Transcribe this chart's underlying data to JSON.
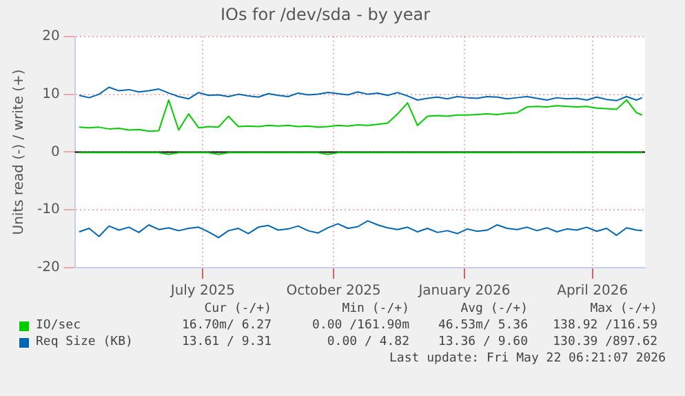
{
  "chart_data": {
    "type": "line",
    "title": "IOs for /dev/sda - by year",
    "ylabel": "Units read (-) / write (+)",
    "x": [
      "2025-04-05",
      "2025-04-12",
      "2025-04-19",
      "2025-04-26",
      "2025-05-03",
      "2025-05-10",
      "2025-05-17",
      "2025-05-24",
      "2025-05-31",
      "2025-06-07",
      "2025-06-14",
      "2025-06-21",
      "2025-06-28",
      "2025-07-05",
      "2025-07-12",
      "2025-07-19",
      "2025-07-26",
      "2025-08-02",
      "2025-08-09",
      "2025-08-16",
      "2025-08-23",
      "2025-08-30",
      "2025-09-06",
      "2025-09-13",
      "2025-09-20",
      "2025-09-27",
      "2025-10-04",
      "2025-10-11",
      "2025-10-18",
      "2025-10-25",
      "2025-11-01",
      "2025-11-08",
      "2025-11-15",
      "2025-11-22",
      "2025-11-29",
      "2025-12-06",
      "2025-12-13",
      "2025-12-20",
      "2025-12-27",
      "2026-01-03",
      "2026-01-10",
      "2026-01-17",
      "2026-01-24",
      "2026-01-31",
      "2026-02-07",
      "2026-02-14",
      "2026-02-21",
      "2026-02-28",
      "2026-03-07",
      "2026-03-14",
      "2026-03-21",
      "2026-03-28",
      "2026-04-04",
      "2026-04-11",
      "2026-04-18",
      "2026-04-25",
      "2026-05-02",
      "2026-05-06"
    ],
    "series": [
      {
        "name": "IO/sec",
        "color": "#00cc00",
        "values": [
          4.3,
          4.2,
          4.3,
          4.0,
          4.1,
          3.8,
          3.9,
          3.6,
          3.7,
          9.0,
          3.8,
          6.6,
          4.2,
          4.4,
          4.3,
          6.2,
          4.4,
          4.5,
          4.4,
          4.6,
          4.5,
          4.6,
          4.4,
          4.5,
          4.3,
          4.4,
          4.6,
          4.5,
          4.7,
          4.6,
          4.8,
          5.0,
          6.6,
          8.5,
          4.6,
          6.2,
          6.3,
          6.2,
          6.4,
          6.4,
          6.5,
          6.6,
          6.5,
          6.7,
          6.8,
          7.8,
          7.9,
          7.8,
          8.0,
          7.9,
          7.8,
          7.9,
          7.6,
          7.5,
          7.4,
          9.0,
          6.8,
          6.4
        ]
      },
      {
        "color": "#00cc00",
        "values": [
          -0.1,
          -0.1,
          -0.1,
          -0.1,
          -0.1,
          -0.1,
          -0.1,
          -0.1,
          -0.1,
          -0.4,
          -0.1,
          -0.1,
          -0.1,
          -0.1,
          -0.4,
          -0.1,
          -0.1,
          -0.1,
          -0.1,
          -0.1,
          -0.1,
          -0.1,
          -0.1,
          -0.1,
          -0.1,
          -0.4,
          -0.1,
          -0.1,
          -0.1,
          -0.1,
          -0.1,
          -0.1,
          -0.1,
          -0.1,
          -0.1,
          -0.1,
          -0.1,
          -0.1,
          -0.1,
          -0.1,
          -0.1,
          -0.1,
          -0.1,
          -0.1,
          -0.1,
          -0.1,
          -0.1,
          -0.1,
          -0.1,
          -0.1,
          -0.1,
          -0.1,
          -0.1,
          -0.1,
          -0.1,
          -0.1,
          -0.1,
          -0.1
        ]
      },
      {
        "name": "Req Size (KB)",
        "color": "#0066b3",
        "values": [
          9.8,
          9.4,
          10.0,
          11.2,
          10.6,
          10.8,
          10.4,
          10.6,
          10.9,
          10.2,
          9.6,
          9.2,
          10.3,
          9.8,
          9.9,
          9.6,
          10.0,
          9.7,
          9.5,
          10.1,
          9.8,
          9.6,
          10.2,
          9.9,
          10.0,
          10.3,
          10.1,
          9.9,
          10.4,
          10.0,
          10.2,
          9.8,
          10.3,
          9.7,
          9.0,
          9.3,
          9.5,
          9.2,
          9.6,
          9.4,
          9.3,
          9.6,
          9.5,
          9.2,
          9.4,
          9.6,
          9.3,
          9.0,
          9.4,
          9.2,
          9.3,
          9.0,
          9.5,
          9.1,
          8.9,
          9.6,
          9.0,
          9.4
        ]
      },
      {
        "color": "#0066b3",
        "values": [
          -13.8,
          -13.2,
          -14.6,
          -12.8,
          -13.5,
          -13.0,
          -13.9,
          -12.6,
          -13.4,
          -13.1,
          -13.6,
          -13.2,
          -13.0,
          -13.8,
          -14.8,
          -13.6,
          -13.2,
          -14.1,
          -13.0,
          -12.7,
          -13.5,
          -13.3,
          -12.8,
          -13.6,
          -14.0,
          -13.1,
          -12.4,
          -13.2,
          -12.9,
          -11.9,
          -12.6,
          -13.1,
          -13.4,
          -13.0,
          -13.8,
          -13.2,
          -13.9,
          -13.6,
          -14.1,
          -13.3,
          -13.7,
          -13.5,
          -12.6,
          -13.2,
          -13.4,
          -13.0,
          -13.6,
          -13.1,
          -13.8,
          -13.3,
          -13.5,
          -13.0,
          -13.7,
          -13.2,
          -14.4,
          -13.1,
          -13.5,
          -13.6
        ]
      }
    ],
    "xlim": [
      "2025-04-02",
      "2026-05-08"
    ],
    "xticks": [
      {
        "value": "2025-07-01",
        "label": "July 2025"
      },
      {
        "value": "2025-10-01",
        "label": "October 2025"
      },
      {
        "value": "2026-01-01",
        "label": "January 2026"
      },
      {
        "value": "2026-04-01",
        "label": "April 2026"
      }
    ],
    "ylim": [
      -20,
      20
    ],
    "yticks": [
      -20,
      -10,
      0,
      10,
      20
    ],
    "grid": true,
    "legend": "bottom",
    "ref_lines": [
      {
        "axis": "y",
        "value": 0,
        "color": "#000000"
      }
    ],
    "annotations": [
      "Cur (-/+)",
      "Min (-/+)",
      "Avg (-/+)",
      "Max (-/+)",
      "16.70m/ 6.27",
      "0.00 /161.90m",
      "46.53m/ 5.36",
      "138.92 /116.59",
      "13.61 / 9.31",
      "0.00 / 4.82",
      "13.36 / 9.60",
      "130.39 /897.62",
      "Last update: Fri May 22 06:21:07 2026"
    ]
  }
}
